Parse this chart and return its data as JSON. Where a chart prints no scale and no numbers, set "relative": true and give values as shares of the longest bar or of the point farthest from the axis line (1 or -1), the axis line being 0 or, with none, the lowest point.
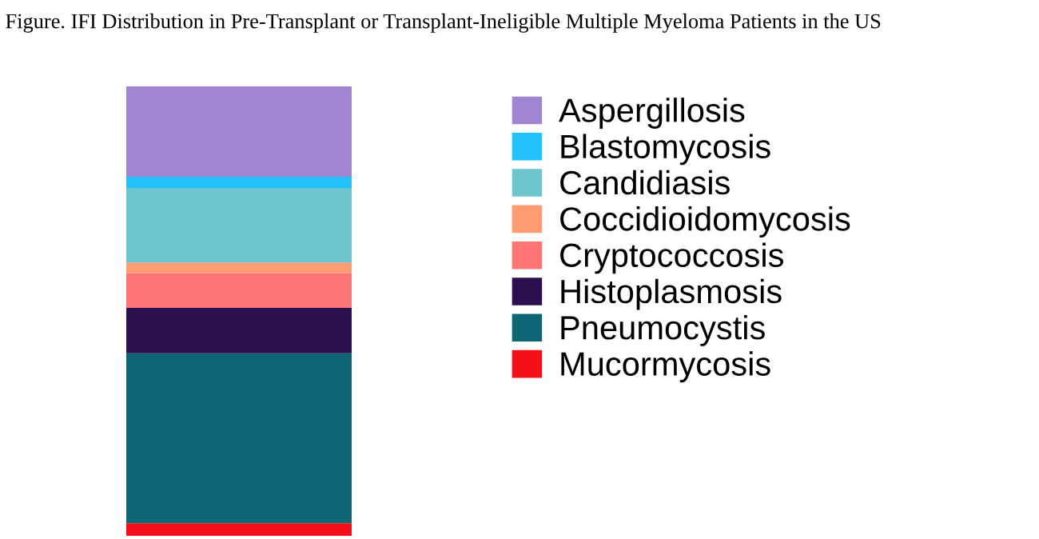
{
  "chart_data": {
    "type": "bar",
    "title": "Figure. IFI Distribution in Pre-Transplant or Transplant-Ineligible Multiple Myeloma Patients in the US",
    "categories": [
      null
    ],
    "stacked": true,
    "relative": true,
    "legend": "right",
    "series": [
      {
        "name": "Mucormycosis",
        "color": "#f50f1a",
        "values": [
          0.028
        ]
      },
      {
        "name": "Pneumocystis",
        "color": "#0e6674",
        "values": [
          0.378
        ]
      },
      {
        "name": "Histoplasmosis",
        "color": "#2b0f4e",
        "values": [
          0.101
        ]
      },
      {
        "name": "Cryptococcosis",
        "color": "#fd7475",
        "values": [
          0.077
        ]
      },
      {
        "name": "Coccidioidomycosis",
        "color": "#fd9b73",
        "values": [
          0.024
        ]
      },
      {
        "name": "Candidiasis",
        "color": "#6cc4cc",
        "values": [
          0.166
        ]
      },
      {
        "name": "Blastomycosis",
        "color": "#22c0fc",
        "values": [
          0.025
        ]
      },
      {
        "name": "Aspergillosis",
        "color": "#a086d0",
        "values": [
          0.201
        ]
      }
    ]
  }
}
